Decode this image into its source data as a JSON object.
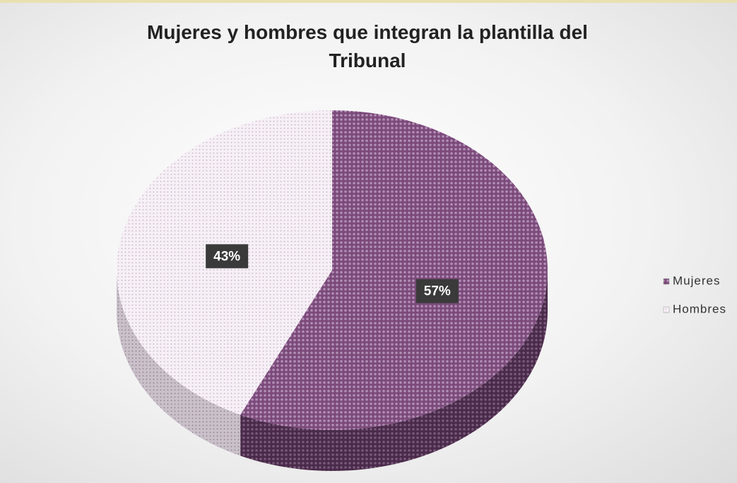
{
  "chart_data": {
    "type": "pie3d",
    "title": "Mujeres y hombres que integran la plantilla del Tribunal",
    "categories": [
      "Mujeres",
      "Hombres"
    ],
    "values": [
      57,
      43
    ],
    "value_labels": [
      "57%",
      "43%"
    ],
    "colors": [
      "#7b4a7b",
      "#e6dae6"
    ],
    "legend": "right"
  }
}
